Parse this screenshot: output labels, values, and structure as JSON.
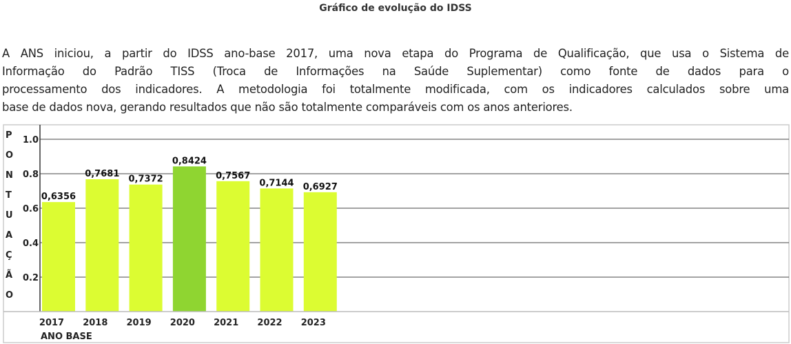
{
  "title": "Gráfico de evolução do IDSS",
  "paragraph": [
    "A ANS iniciou, a partir do IDSS ano-base 2017, uma nova etapa do Programa de Qualificação, que usa o Sistema de",
    "Informação do Padrão TISS (Troca de Informações na Saúde Suplementar) como fonte de dados para o",
    "processamento dos indicadores. A metodologia foi totalmente modificada, com os indicadores calculados sobre uma",
    "base de dados nova, gerando resultados que não são totalmente comparáveis com os anos anteriores."
  ],
  "chart_data": {
    "type": "bar",
    "categories": [
      "2017",
      "2018",
      "2019",
      "2020",
      "2021",
      "2022",
      "2023"
    ],
    "values": [
      0.6356,
      0.7681,
      0.7372,
      0.8424,
      0.7567,
      0.7144,
      0.6927
    ],
    "data_labels": [
      "0,6356",
      "0,7681",
      "0,7372",
      "0,8424",
      "0,7567",
      "0,7144",
      "0,6927"
    ],
    "xlabel": "ANO BASE",
    "ylabel": "PONTUAÇÃO",
    "ylim": [
      0,
      1.0
    ],
    "yticks": [
      "0.2",
      "0.4",
      "0.6",
      "0.8",
      "1.0"
    ],
    "grid": true,
    "colors": {
      "default": "#dcfc32",
      "highlight": "#8fd531"
    },
    "highlight": "2020"
  }
}
